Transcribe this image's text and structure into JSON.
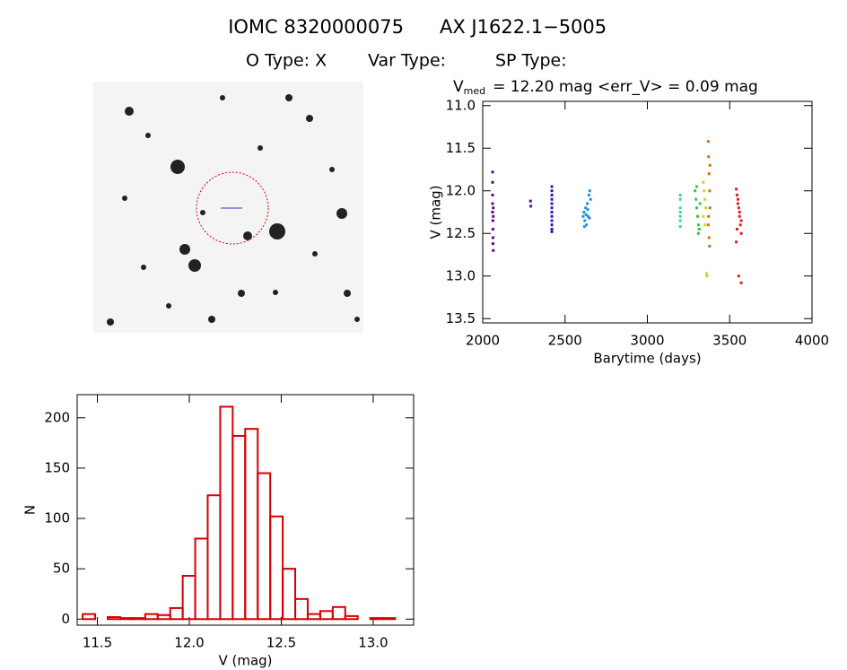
{
  "header": {
    "id": "IOMC 8320000075",
    "name": "AX J1622.1−5005",
    "o_type": "O Type: X",
    "var_type": "Var Type:",
    "sp_type": "SP Type:"
  },
  "chart_data": [
    {
      "type": "scatter",
      "annotation": {
        "symbol": "V",
        "subscript": "med",
        "text": "= 12.20 mag <err_V> = 0.09 mag"
      },
      "x_label": "Barytime (days)",
      "y_label": "V (mag)",
      "xlim": [
        2000,
        4000
      ],
      "xticks": [
        2000,
        2500,
        3000,
        3500,
        4000
      ],
      "ylim": [
        10.95,
        13.55
      ],
      "y_inverted": true,
      "yticks": [
        {
          "value": 11,
          "label": "11.0"
        },
        11.5,
        {
          "value": 12,
          "label": "12.0"
        },
        12.5,
        {
          "value": 13,
          "label": "13.0"
        },
        13.5
      ],
      "series": [
        {
          "color": "#5a0a8c",
          "x": [
            2060,
            2060,
            2060,
            2060,
            2060,
            2062,
            2062,
            2062,
            2062,
            2064,
            2064,
            2064,
            2290,
            2292
          ],
          "y": [
            11.78,
            11.9,
            12.05,
            12.15,
            12.25,
            12.35,
            12.45,
            12.55,
            12.62,
            12.2,
            12.3,
            12.7,
            12.12,
            12.18
          ]
        },
        {
          "color": "#2020c0",
          "x": [
            2420,
            2420,
            2420,
            2420,
            2420,
            2420,
            2420,
            2420,
            2420,
            2420,
            2420,
            2420
          ],
          "y": [
            11.95,
            12.0,
            12.05,
            12.1,
            12.15,
            12.2,
            12.25,
            12.3,
            12.35,
            12.4,
            12.45,
            12.48
          ]
        },
        {
          "color": "#1e90e0",
          "x": [
            2610,
            2615,
            2620,
            2625,
            2630,
            2635,
            2640,
            2645,
            2650,
            2655,
            2618,
            2628,
            2638,
            2648
          ],
          "y": [
            12.3,
            12.25,
            12.35,
            12.2,
            12.4,
            12.15,
            12.3,
            12.05,
            12.0,
            12.1,
            12.42,
            12.28,
            12.22,
            12.32
          ]
        },
        {
          "color": "#30d8b0",
          "x": [
            3200,
            3200,
            3200,
            3200,
            3200,
            3200,
            3200
          ],
          "y": [
            12.05,
            12.1,
            12.2,
            12.25,
            12.3,
            12.35,
            12.42
          ]
        },
        {
          "color": "#40c040",
          "x": [
            3290,
            3295,
            3300,
            3305,
            3310,
            3315,
            3320,
            3300,
            3310
          ],
          "y": [
            12.0,
            12.1,
            12.2,
            12.3,
            12.4,
            12.45,
            12.15,
            11.95,
            12.5
          ]
        },
        {
          "color": "#c8d820",
          "x": [
            3340,
            3345,
            3350,
            3355,
            3340,
            3350,
            3360,
            3362
          ],
          "y": [
            11.9,
            12.0,
            12.1,
            12.2,
            12.3,
            12.4,
            12.97,
            13.0
          ]
        },
        {
          "color": "#d07010",
          "x": [
            3370,
            3372,
            3375,
            3378,
            3380,
            3370,
            3375,
            3378,
            3380,
            3372
          ],
          "y": [
            11.42,
            11.6,
            11.8,
            12.0,
            12.2,
            12.4,
            12.55,
            12.65,
            11.7,
            12.3
          ]
        },
        {
          "color": "#e02020",
          "x": [
            3540,
            3545,
            3550,
            3555,
            3560,
            3565,
            3570,
            3540,
            3550,
            3560,
            3570,
            3545,
            3555,
            3570
          ],
          "y": [
            11.98,
            12.05,
            12.1,
            12.2,
            12.3,
            12.4,
            12.5,
            12.6,
            12.15,
            12.25,
            12.35,
            12.45,
            13.0,
            13.08
          ]
        }
      ]
    },
    {
      "type": "histogram",
      "x_label": "V (mag)",
      "y_label": "N",
      "color": "#d40000",
      "xlim": [
        11.39,
        13.22
      ],
      "xticks": [
        11.5,
        {
          "value": 12,
          "label": "12.0"
        },
        12.5,
        {
          "value": 13,
          "label": "13.0"
        }
      ],
      "ylim": [
        -6,
        223
      ],
      "yticks": [
        0,
        50,
        100,
        150,
        200
      ],
      "bins": [
        11.42,
        11.488,
        11.556,
        11.624,
        11.692,
        11.76,
        11.828,
        11.896,
        11.964,
        12.032,
        12.1,
        12.168,
        12.236,
        12.304,
        12.372,
        12.44,
        12.508,
        12.576,
        12.644,
        12.712,
        12.78,
        12.848,
        12.916,
        12.984,
        13.052,
        13.12
      ],
      "counts": [
        5,
        0,
        2,
        1,
        1,
        5,
        4,
        11,
        43,
        80,
        123,
        211,
        182,
        189,
        145,
        102,
        50,
        20,
        5,
        8,
        12,
        3,
        0,
        1,
        1
      ]
    }
  ]
}
